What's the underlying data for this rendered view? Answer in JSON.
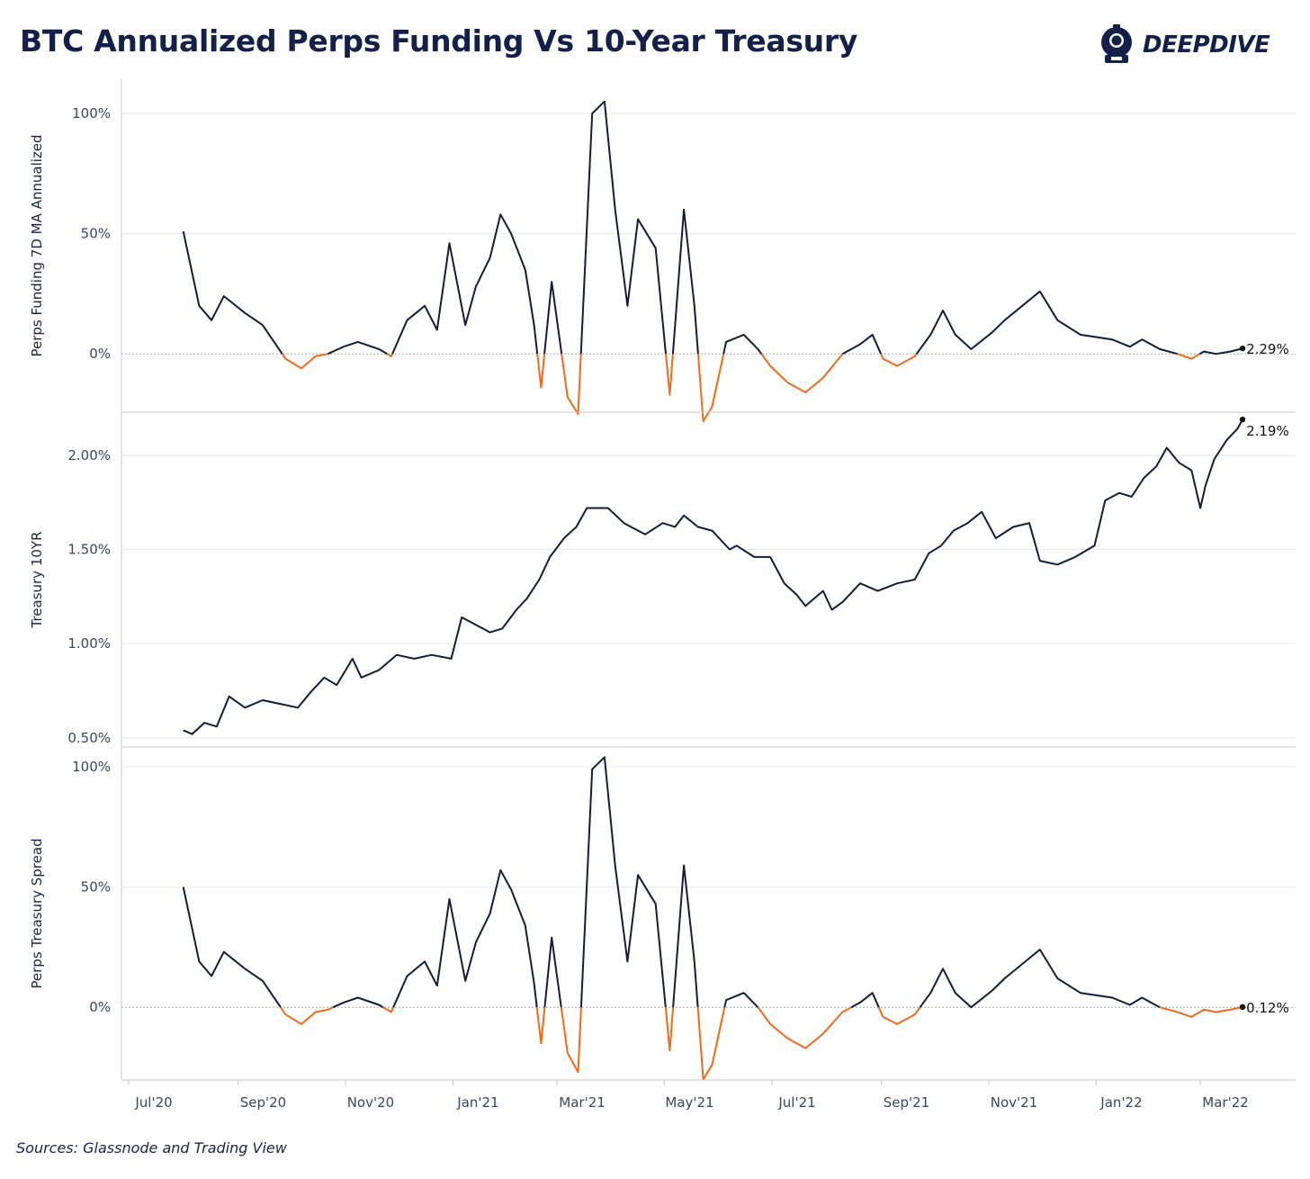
{
  "title": "BTC Annualized Perps Funding Vs 10-Year Treasury",
  "logo": {
    "text": "DEEPDIVE",
    "icon": "diving-helmet-icon"
  },
  "source": "Sources: Glassnode and Trading View",
  "colors": {
    "line": "#141c3d",
    "negative": "#ee6b1c",
    "grid": "#e8e8e8",
    "zero": "#a8a8a8"
  },
  "chart_data": [
    {
      "type": "line",
      "ylabel": "Perps Funding 7D MA Annualized",
      "yticks": [
        "100%",
        "50%",
        "0%"
      ],
      "ytick_values": [
        100,
        50,
        0
      ],
      "ylim": [
        -22,
        112
      ],
      "end_label": "2.29%",
      "negative_color_below_zero": true,
      "x": [
        "2020-08-01",
        "2020-08-10",
        "2020-08-17",
        "2020-08-24",
        "2020-09-05",
        "2020-09-15",
        "2020-09-28",
        "2020-10-07",
        "2020-10-15",
        "2020-10-22",
        "2020-10-31",
        "2020-11-08",
        "2020-11-20",
        "2020-11-27",
        "2020-12-06",
        "2020-12-16",
        "2020-12-23",
        "2020-12-30",
        "2021-01-08",
        "2021-01-14",
        "2021-01-22",
        "2021-01-28",
        "2021-02-03",
        "2021-02-11",
        "2021-02-16",
        "2021-02-20",
        "2021-02-26",
        "2021-03-07",
        "2021-03-13",
        "2021-03-21",
        "2021-03-28",
        "2021-04-03",
        "2021-04-10",
        "2021-04-16",
        "2021-04-26",
        "2021-05-04",
        "2021-05-12",
        "2021-05-18",
        "2021-05-23",
        "2021-05-28",
        "2021-06-05",
        "2021-06-15",
        "2021-06-23",
        "2021-06-30",
        "2021-07-10",
        "2021-07-20",
        "2021-07-30",
        "2021-08-10",
        "2021-08-20",
        "2021-08-27",
        "2021-09-02",
        "2021-09-10",
        "2021-09-20",
        "2021-09-29",
        "2021-10-06",
        "2021-10-13",
        "2021-10-22",
        "2021-11-03",
        "2021-11-10",
        "2021-11-20",
        "2021-11-30",
        "2021-12-10",
        "2021-12-23",
        "2022-01-10",
        "2022-01-20",
        "2022-01-27",
        "2022-02-06",
        "2022-02-16",
        "2022-02-24",
        "2022-03-03",
        "2022-03-10",
        "2022-03-18",
        "2022-03-25"
      ],
      "y": [
        51,
        20,
        14,
        24,
        17,
        12,
        -2,
        -6,
        -1,
        0,
        3,
        5,
        2,
        -1,
        14,
        20,
        10,
        46,
        12,
        28,
        40,
        58,
        50,
        35,
        12,
        -14,
        30,
        -18,
        -25,
        100,
        105,
        60,
        20,
        56,
        44,
        -17,
        60,
        20,
        -28,
        -22,
        5,
        8,
        2,
        -5,
        -12,
        -16,
        -10,
        0,
        4,
        8,
        -2,
        -5,
        -1,
        8,
        18,
        8,
        2,
        9,
        14,
        20,
        26,
        14,
        8,
        6,
        3,
        6,
        2,
        0,
        -2,
        1,
        0,
        1,
        2.29
      ]
    },
    {
      "type": "line",
      "ylabel": "Treasury 10YR",
      "yticks": [
        "2.00%",
        "1.50%",
        "1.00%",
        "0.50%"
      ],
      "ytick_values": [
        2.0,
        1.5,
        1.0,
        0.5
      ],
      "ylim": [
        0.48,
        2.2
      ],
      "end_label": "2.19%",
      "negative_color_below_zero": false,
      "x": [
        "2020-08-01",
        "2020-08-06",
        "2020-08-13",
        "2020-08-20",
        "2020-08-27",
        "2020-09-05",
        "2020-09-15",
        "2020-09-25",
        "2020-10-05",
        "2020-10-12",
        "2020-10-20",
        "2020-10-27",
        "2020-11-05",
        "2020-11-10",
        "2020-11-20",
        "2020-11-30",
        "2020-12-10",
        "2020-12-20",
        "2020-12-31",
        "2021-01-06",
        "2021-01-14",
        "2021-01-22",
        "2021-01-29",
        "2021-02-06",
        "2021-02-12",
        "2021-02-19",
        "2021-02-25",
        "2021-03-05",
        "2021-03-12",
        "2021-03-18",
        "2021-03-30",
        "2021-04-08",
        "2021-04-20",
        "2021-04-30",
        "2021-05-07",
        "2021-05-12",
        "2021-05-20",
        "2021-05-28",
        "2021-06-07",
        "2021-06-11",
        "2021-06-21",
        "2021-06-30",
        "2021-07-08",
        "2021-07-15",
        "2021-07-20",
        "2021-07-30",
        "2021-08-04",
        "2021-08-10",
        "2021-08-20",
        "2021-08-30",
        "2021-09-10",
        "2021-09-20",
        "2021-09-28",
        "2021-10-05",
        "2021-10-12",
        "2021-10-20",
        "2021-10-28",
        "2021-11-05",
        "2021-11-15",
        "2021-11-24",
        "2021-11-30",
        "2021-12-10",
        "2021-12-20",
        "2021-12-31",
        "2022-01-06",
        "2022-01-14",
        "2022-01-21",
        "2022-01-28",
        "2022-02-04",
        "2022-02-10",
        "2022-02-17",
        "2022-02-24",
        "2022-03-01",
        "2022-03-04",
        "2022-03-09",
        "2022-03-16",
        "2022-03-22",
        "2022-03-25"
      ],
      "y": [
        0.54,
        0.52,
        0.58,
        0.56,
        0.72,
        0.66,
        0.7,
        0.68,
        0.66,
        0.74,
        0.82,
        0.78,
        0.92,
        0.82,
        0.86,
        0.94,
        0.92,
        0.94,
        0.92,
        1.14,
        1.1,
        1.06,
        1.08,
        1.18,
        1.24,
        1.34,
        1.46,
        1.56,
        1.62,
        1.72,
        1.72,
        1.64,
        1.58,
        1.64,
        1.62,
        1.68,
        1.62,
        1.6,
        1.5,
        1.52,
        1.46,
        1.46,
        1.32,
        1.26,
        1.2,
        1.28,
        1.18,
        1.22,
        1.32,
        1.28,
        1.32,
        1.34,
        1.48,
        1.52,
        1.6,
        1.64,
        1.7,
        1.56,
        1.62,
        1.64,
        1.44,
        1.42,
        1.46,
        1.52,
        1.76,
        1.8,
        1.78,
        1.88,
        1.94,
        2.04,
        1.96,
        1.92,
        1.72,
        1.84,
        1.98,
        2.08,
        2.14,
        2.19
      ]
    },
    {
      "type": "line",
      "ylabel": "Perps Treasury Spread",
      "yticks": [
        "100%",
        "50%",
        "0%"
      ],
      "ytick_values": [
        100,
        50,
        0
      ],
      "ylim": [
        -28,
        106
      ],
      "end_label": "0.12%",
      "negative_color_below_zero": true,
      "x": [
        "2020-08-01",
        "2020-08-10",
        "2020-08-17",
        "2020-08-24",
        "2020-09-05",
        "2020-09-15",
        "2020-09-28",
        "2020-10-07",
        "2020-10-15",
        "2020-10-22",
        "2020-10-31",
        "2020-11-08",
        "2020-11-20",
        "2020-11-27",
        "2020-12-06",
        "2020-12-16",
        "2020-12-23",
        "2020-12-30",
        "2021-01-08",
        "2021-01-14",
        "2021-01-22",
        "2021-01-28",
        "2021-02-03",
        "2021-02-11",
        "2021-02-16",
        "2021-02-20",
        "2021-02-26",
        "2021-03-07",
        "2021-03-13",
        "2021-03-21",
        "2021-03-28",
        "2021-04-03",
        "2021-04-10",
        "2021-04-16",
        "2021-04-26",
        "2021-05-04",
        "2021-05-12",
        "2021-05-18",
        "2021-05-23",
        "2021-05-28",
        "2021-06-05",
        "2021-06-15",
        "2021-06-23",
        "2021-06-30",
        "2021-07-10",
        "2021-07-20",
        "2021-07-30",
        "2021-08-10",
        "2021-08-20",
        "2021-08-27",
        "2021-09-02",
        "2021-09-10",
        "2021-09-20",
        "2021-09-29",
        "2021-10-06",
        "2021-10-13",
        "2021-10-22",
        "2021-11-03",
        "2021-11-10",
        "2021-11-20",
        "2021-11-30",
        "2021-12-10",
        "2021-12-23",
        "2022-01-10",
        "2022-01-20",
        "2022-01-27",
        "2022-02-06",
        "2022-02-16",
        "2022-02-24",
        "2022-03-03",
        "2022-03-10",
        "2022-03-18",
        "2022-03-25"
      ],
      "y": [
        50,
        19,
        13,
        23,
        16,
        11,
        -3,
        -7,
        -2,
        -1,
        2,
        4,
        1,
        -2,
        13,
        19,
        9,
        45,
        11,
        27,
        39,
        57,
        49,
        34,
        10,
        -15,
        29,
        -19,
        -27,
        99,
        104,
        59,
        19,
        55,
        43,
        -18,
        59,
        19,
        -30,
        -24,
        3,
        6,
        0,
        -7,
        -13,
        -17,
        -11,
        -2,
        2,
        6,
        -4,
        -7,
        -3,
        6,
        16,
        6,
        0,
        7,
        12,
        18,
        24,
        12,
        6,
        4,
        1,
        4,
        0,
        -2,
        -4,
        -1,
        -2,
        -1,
        0.12
      ]
    }
  ],
  "x_axis": {
    "labels": [
      "Jul'20",
      "Sep'20",
      "Nov'20",
      "Jan'21",
      "Mar'21",
      "May'21",
      "Jul'21",
      "Sep'21",
      "Nov'21",
      "Jan'22",
      "Mar'22"
    ],
    "dates": [
      "2020-07-01",
      "2020-09-01",
      "2020-11-01",
      "2021-01-01",
      "2021-03-01",
      "2021-05-01",
      "2021-07-01",
      "2021-09-01",
      "2021-11-01",
      "2022-01-01",
      "2022-03-01"
    ],
    "range": [
      "2020-07-01",
      "2022-04-20"
    ]
  }
}
